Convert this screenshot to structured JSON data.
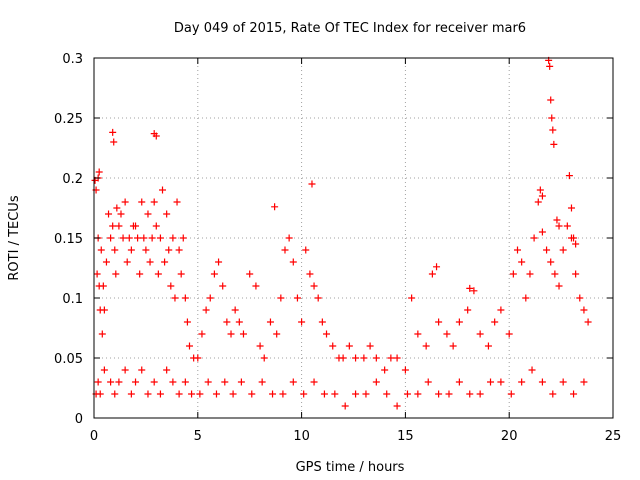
{
  "chart_data": {
    "type": "scatter",
    "title": "Day 049 of 2015, Rate Of TEC Index for receiver mar6",
    "xlabel": "GPS time / hours",
    "ylabel": "ROTI / TECUs",
    "xlim": [
      0,
      25
    ],
    "ylim": [
      0,
      0.3
    ],
    "xticks": [
      0,
      5,
      10,
      15,
      20,
      25
    ],
    "xtick_labels": [
      "0",
      "5",
      "10",
      "15",
      "20",
      "25"
    ],
    "yticks": [
      0,
      0.05,
      0.1,
      0.15,
      0.2,
      0.25,
      0.3
    ],
    "ytick_labels": [
      "0",
      "0.05",
      "0.1",
      "0.15",
      "0.2",
      "0.25",
      "0.3"
    ],
    "grid": true,
    "marker": "+",
    "series": [
      {
        "name": "ROTI",
        "color": "#ff0000",
        "x": [
          0.05,
          0.1,
          0.15,
          0.2,
          0.25,
          0.3,
          0.35,
          0.4,
          0.45,
          0.5,
          0.6,
          0.7,
          0.8,
          0.9,
          1.0,
          1.05,
          1.1,
          1.2,
          1.3,
          1.4,
          1.5,
          1.6,
          1.7,
          1.8,
          1.9,
          2.0,
          2.1,
          2.2,
          2.3,
          2.4,
          2.5,
          2.6,
          2.7,
          2.8,
          2.9,
          3.0,
          3.1,
          3.2,
          3.3,
          3.4,
          3.5,
          3.6,
          3.7,
          3.8,
          3.9,
          4.0,
          4.1,
          4.2,
          4.3,
          4.4,
          4.5,
          4.6,
          4.8,
          5.0,
          5.2,
          5.4,
          5.6,
          5.8,
          6.0,
          6.2,
          6.4,
          6.6,
          6.8,
          7.0,
          7.2,
          7.5,
          7.8,
          8.0,
          8.2,
          8.5,
          8.8,
          9.0,
          9.2,
          9.4,
          9.6,
          9.8,
          10.0,
          10.2,
          10.4,
          10.6,
          10.8,
          11.0,
          11.2,
          11.5,
          11.8,
          12.0,
          12.3,
          12.6,
          13.0,
          13.3,
          13.6,
          14.0,
          14.3,
          14.6,
          15.0,
          15.3,
          15.6,
          16.0,
          16.3,
          16.6,
          17.0,
          17.3,
          17.6,
          18.0,
          18.3,
          18.6,
          19.0,
          19.3,
          19.6,
          20.0,
          20.2,
          20.4,
          20.6,
          20.8,
          21.0,
          21.2,
          21.4,
          21.6,
          21.8,
          22.0,
          22.2,
          22.4,
          22.6,
          22.8,
          23.0,
          23.2,
          23.4,
          23.6,
          23.8,
          0.1,
          0.2,
          0.3,
          0.5,
          0.8,
          1.0,
          1.2,
          1.5,
          1.8,
          2.0,
          2.3,
          2.6,
          2.9,
          3.2,
          3.5,
          3.8,
          4.1,
          4.4,
          4.7,
          5.1,
          5.5,
          5.9,
          6.3,
          6.7,
          7.1,
          7.6,
          8.1,
          8.6,
          9.1,
          9.6,
          10.1,
          10.6,
          11.1,
          11.6,
          12.1,
          12.6,
          13.1,
          13.6,
          14.1,
          14.6,
          15.1,
          15.6,
          16.1,
          16.6,
          17.1,
          17.6,
          18.1,
          18.6,
          19.1,
          19.6,
          20.1,
          20.6,
          21.1,
          21.6,
          22.1,
          22.6,
          23.1,
          23.6,
          0.9,
          0.95,
          2.9,
          3.0,
          0.2,
          0.25,
          10.5,
          8.7,
          16.5,
          18.1,
          21.9,
          21.95,
          22.0,
          22.05,
          22.1,
          22.15,
          21.5,
          21.6,
          22.9,
          23.0,
          22.3,
          22.4,
          23.1,
          23.2
        ],
        "y": [
          0.198,
          0.19,
          0.12,
          0.15,
          0.11,
          0.09,
          0.14,
          0.07,
          0.11,
          0.09,
          0.13,
          0.17,
          0.15,
          0.16,
          0.14,
          0.12,
          0.175,
          0.16,
          0.17,
          0.15,
          0.18,
          0.13,
          0.15,
          0.14,
          0.16,
          0.16,
          0.15,
          0.12,
          0.18,
          0.15,
          0.14,
          0.17,
          0.13,
          0.15,
          0.18,
          0.16,
          0.12,
          0.15,
          0.19,
          0.13,
          0.17,
          0.14,
          0.11,
          0.15,
          0.1,
          0.18,
          0.14,
          0.12,
          0.15,
          0.1,
          0.08,
          0.06,
          0.05,
          0.05,
          0.07,
          0.09,
          0.1,
          0.12,
          0.13,
          0.11,
          0.08,
          0.07,
          0.09,
          0.08,
          0.07,
          0.12,
          0.11,
          0.06,
          0.05,
          0.08,
          0.07,
          0.1,
          0.14,
          0.15,
          0.13,
          0.1,
          0.08,
          0.14,
          0.12,
          0.11,
          0.1,
          0.08,
          0.07,
          0.06,
          0.05,
          0.05,
          0.06,
          0.05,
          0.05,
          0.06,
          0.05,
          0.04,
          0.05,
          0.05,
          0.04,
          0.1,
          0.07,
          0.06,
          0.12,
          0.08,
          0.07,
          0.06,
          0.08,
          0.09,
          0.106,
          0.07,
          0.06,
          0.08,
          0.09,
          0.07,
          0.12,
          0.14,
          0.13,
          0.1,
          0.12,
          0.15,
          0.18,
          0.155,
          0.14,
          0.13,
          0.12,
          0.11,
          0.14,
          0.16,
          0.15,
          0.12,
          0.1,
          0.09,
          0.08,
          0.02,
          0.03,
          0.02,
          0.04,
          0.03,
          0.02,
          0.03,
          0.04,
          0.02,
          0.03,
          0.04,
          0.02,
          0.03,
          0.02,
          0.04,
          0.03,
          0.02,
          0.03,
          0.02,
          0.02,
          0.03,
          0.02,
          0.03,
          0.02,
          0.03,
          0.02,
          0.03,
          0.02,
          0.02,
          0.03,
          0.02,
          0.03,
          0.02,
          0.02,
          0.01,
          0.02,
          0.02,
          0.03,
          0.02,
          0.01,
          0.02,
          0.02,
          0.03,
          0.02,
          0.02,
          0.03,
          0.02,
          0.02,
          0.03,
          0.03,
          0.02,
          0.03,
          0.04,
          0.03,
          0.02,
          0.03,
          0.02,
          0.03,
          0.238,
          0.23,
          0.237,
          0.235,
          0.2,
          0.205,
          0.195,
          0.176,
          0.126,
          0.108,
          0.298,
          0.293,
          0.265,
          0.25,
          0.24,
          0.228,
          0.19,
          0.185,
          0.202,
          0.175,
          0.165,
          0.16,
          0.15,
          0.145
        ]
      }
    ]
  }
}
